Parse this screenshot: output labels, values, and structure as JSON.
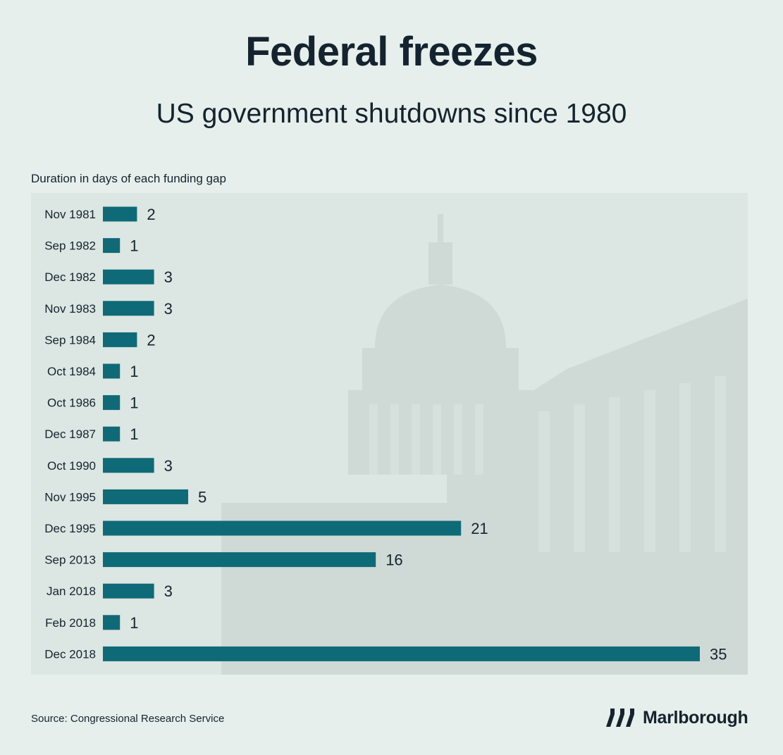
{
  "title": "Federal freezes",
  "subtitle": "US government shutdowns since 1980",
  "source": "Source: Congressional Research Service",
  "brand": {
    "name": "Marlborough",
    "logo_icon": "marlborough-logo-icon"
  },
  "colors": {
    "background": "#e6efeb",
    "panel": "#dce6e2",
    "bar": "#0f6a78",
    "text": "#14232f"
  },
  "chart_data": {
    "type": "bar",
    "orientation": "horizontal",
    "ylabel": "Duration in days of each funding gap",
    "categories": [
      "Nov 1981",
      "Sep 1982",
      "Dec 1982",
      "Nov 1983",
      "Sep 1984",
      "Oct 1984",
      "Oct 1986",
      "Dec 1987",
      "Oct 1990",
      "Nov 1995",
      "Dec 1995",
      "Sep 2013",
      "Jan 2018",
      "Feb 2018",
      "Dec 2018"
    ],
    "values": [
      2,
      1,
      3,
      3,
      2,
      1,
      1,
      1,
      3,
      5,
      21,
      16,
      3,
      1,
      35
    ],
    "data_labels": true,
    "grid": false,
    "legend": "none"
  }
}
